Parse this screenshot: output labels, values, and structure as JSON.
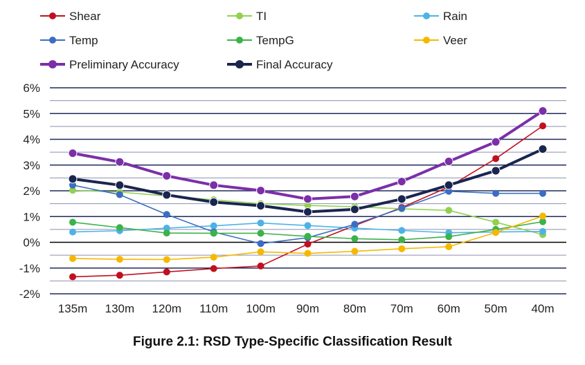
{
  "chart_data": {
    "type": "line",
    "title": "",
    "xlabel": "",
    "ylabel": "",
    "caption": "Figure 2.1: RSD Type-Specific Classification Result",
    "categories": [
      "135m",
      "130m",
      "120m",
      "110m",
      "100m",
      "90m",
      "80m",
      "70m",
      "60m",
      "50m",
      "40m"
    ],
    "ylim": [
      -0.02,
      0.06
    ],
    "y_ticks": [
      -0.02,
      -0.01,
      0,
      0.01,
      0.02,
      0.03,
      0.04,
      0.05,
      0.06
    ],
    "y_tick_labels": [
      "-2%",
      "-1%",
      "0%",
      "1%",
      "2%",
      "3%",
      "4%",
      "5%",
      "6%"
    ],
    "grid": "horizontal, major and minor",
    "legend_position": "top",
    "series": [
      {
        "name": "Shear",
        "color": "#C0101F",
        "emphasis": false,
        "values": [
          -0.0134,
          -0.0128,
          -0.0115,
          -0.0102,
          -0.0092,
          -0.0007,
          0.0065,
          0.0135,
          0.0215,
          0.0325,
          0.0452
        ]
      },
      {
        "name": "TI",
        "color": "#92D050",
        "emphasis": false,
        "values": [
          0.0202,
          0.0195,
          0.018,
          0.0165,
          0.015,
          0.0143,
          0.0138,
          0.013,
          0.0124,
          0.0078,
          0.003
        ]
      },
      {
        "name": "Rain",
        "color": "#4DB3E6",
        "emphasis": false,
        "values": [
          0.004,
          0.0045,
          0.0055,
          0.0064,
          0.0075,
          0.0065,
          0.0055,
          0.0046,
          0.0037,
          0.004,
          0.0042
        ]
      },
      {
        "name": "Temp",
        "color": "#3B6DC3",
        "emphasis": false,
        "values": [
          0.0222,
          0.0185,
          0.0108,
          0.004,
          -0.0005,
          0.0018,
          0.007,
          0.0132,
          0.0198,
          0.019,
          0.019
        ]
      },
      {
        "name": "TempG",
        "color": "#3CB24A",
        "emphasis": false,
        "values": [
          0.0078,
          0.0057,
          0.0036,
          0.0035,
          0.0035,
          0.0023,
          0.0014,
          0.001,
          0.0022,
          0.005,
          0.008
        ]
      },
      {
        "name": "Veer",
        "color": "#F5B800",
        "emphasis": false,
        "values": [
          -0.0063,
          -0.0066,
          -0.0067,
          -0.0058,
          -0.0037,
          -0.0043,
          -0.0035,
          -0.0025,
          -0.0017,
          0.0038,
          0.0102
        ]
      },
      {
        "name": "Preliminary Accuracy",
        "color": "#7B2FA8",
        "emphasis": true,
        "values": [
          0.0346,
          0.0312,
          0.0258,
          0.0222,
          0.0201,
          0.0168,
          0.0178,
          0.0236,
          0.0314,
          0.039,
          0.051
        ]
      },
      {
        "name": "Final Accuracy",
        "color": "#1A2550",
        "emphasis": true,
        "values": [
          0.0246,
          0.0222,
          0.0184,
          0.0156,
          0.0142,
          0.0118,
          0.0128,
          0.0168,
          0.0222,
          0.0278,
          0.0362
        ]
      }
    ]
  }
}
